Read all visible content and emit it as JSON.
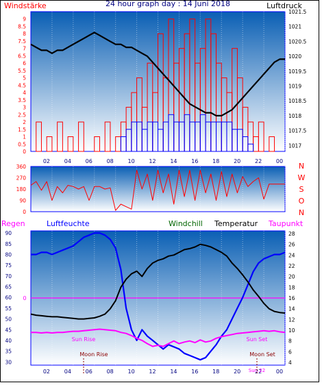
{
  "colors": {
    "wind": "#ff0000",
    "gust": "#0000ff",
    "pressure": "#000000",
    "humidity": "#0000ff",
    "windchill": "#006400",
    "temperature": "#000000",
    "dewpoint": "#ff00ff",
    "rain": "#ff00ff",
    "grad_top": "#0a5fb4",
    "grad_bottom": "#ffffff",
    "axis_red": "#ff0000",
    "axis_dark": "#000080"
  },
  "header": {
    "left": "Windstärke",
    "center": "24 hour graph day : 14 Juni 2018",
    "right": "Luftdruck"
  },
  "legend": {
    "rain": "Regen",
    "humidity": "Luftfeuchte",
    "windchill": "Windchill",
    "temperature": "Temperatur",
    "dewpoint": "Taupunkt"
  },
  "compass": [
    "N",
    "W",
    "S",
    "O",
    "N"
  ],
  "time_ticks": [
    "02",
    "04",
    "06",
    "08",
    "10",
    "12",
    "14",
    "16",
    "18",
    "20",
    "22",
    "00"
  ],
  "annotations": {
    "sun_rise": "Sun Rise",
    "moon_rise": "Moon Rise",
    "sun_set": "Sun Set",
    "moon_set": "Moon Set",
    "sun_overlap": "Sun 22"
  },
  "chart_data": [
    {
      "type": "line",
      "title": "24 hour graph day : 14 Juni 2018",
      "ylabel": "Windstärke",
      "y2label": "Luftdruck",
      "ylim": [
        0,
        9.5
      ],
      "y2lim": [
        1016.8,
        1021.5
      ],
      "yticks": [
        "0",
        "0.5",
        "1",
        "1.5",
        "2",
        "2.5",
        "3",
        "3.5",
        "4",
        "4.5",
        "5",
        "5.5",
        "6",
        "6.5",
        "7",
        "7.5",
        "8",
        "8.5",
        "9"
      ],
      "y2ticks": [
        "1017",
        "1017.5",
        "1018",
        "1018.5",
        "1019",
        "1019.5",
        "1020",
        "1020.5",
        "1021",
        "1021.5"
      ],
      "x_hours": [
        0,
        0.5,
        1,
        1.5,
        2,
        2.5,
        3,
        3.5,
        4,
        4.5,
        5,
        5.5,
        6,
        6.5,
        7,
        7.5,
        8,
        8.5,
        9,
        9.5,
        10,
        10.5,
        11,
        11.5,
        12,
        12.5,
        13,
        13.5,
        14,
        14.5,
        15,
        15.5,
        16,
        16.5,
        17,
        17.5,
        18,
        18.5,
        19,
        19.5,
        20,
        20.5,
        21,
        21.5,
        22,
        22.5,
        23,
        23.5,
        24
      ],
      "series": [
        {
          "values": [
            0,
            2,
            0,
            1,
            0,
            2,
            0,
            1,
            0,
            2,
            0,
            0,
            1,
            0,
            2,
            0,
            1,
            2,
            3,
            4,
            5,
            3,
            6,
            4,
            8,
            5,
            9,
            6,
            7,
            8,
            9,
            6,
            7,
            9,
            8,
            6,
            5,
            4,
            7,
            5,
            3,
            2,
            1,
            2,
            0,
            1,
            0,
            0,
            2
          ]
        },
        {
          "values": [
            0,
            0,
            0,
            0,
            0,
            0,
            0,
            0,
            0,
            0,
            0,
            0,
            0,
            0,
            0,
            0,
            0,
            1,
            1.5,
            2,
            2,
            1.5,
            2,
            2,
            1.5,
            2,
            2.5,
            2,
            2,
            2.5,
            2,
            2,
            2.5,
            2,
            2,
            2,
            2,
            2,
            1.5,
            1.5,
            1,
            0.5,
            0,
            0,
            0,
            0,
            0,
            0,
            0
          ]
        },
        {
          "values": [
            1020.4,
            1020.3,
            1020.2,
            1020.2,
            1020.1,
            1020.2,
            1020.2,
            1020.3,
            1020.4,
            1020.5,
            1020.6,
            1020.7,
            1020.8,
            1020.7,
            1020.6,
            1020.5,
            1020.4,
            1020.4,
            1020.3,
            1020.3,
            1020.2,
            1020.1,
            1020.0,
            1019.8,
            1019.6,
            1019.4,
            1019.2,
            1019.0,
            1018.8,
            1018.6,
            1018.4,
            1018.3,
            1018.2,
            1018.1,
            1018.1,
            1018.0,
            1018.0,
            1018.1,
            1018.2,
            1018.4,
            1018.6,
            1018.8,
            1019.0,
            1019.2,
            1019.4,
            1019.6,
            1019.8,
            1019.9,
            1019.9
          ]
        }
      ]
    },
    {
      "type": "line",
      "ylim": [
        0,
        360
      ],
      "yticks": [
        "0",
        "90",
        "180",
        "270",
        "360"
      ],
      "x_hours": [
        0,
        0.5,
        1,
        1.5,
        2,
        2.5,
        3,
        3.5,
        4,
        4.5,
        5,
        5.5,
        6,
        6.5,
        7,
        7.5,
        8,
        8.5,
        9,
        9.5,
        10,
        10.5,
        11,
        11.5,
        12,
        12.5,
        13,
        13.5,
        14,
        14.5,
        15,
        15.5,
        16,
        16.5,
        17,
        17.5,
        18,
        18.5,
        19,
        19.5,
        20,
        20.5,
        21,
        21.5,
        22,
        22.5,
        23,
        23.5,
        24
      ],
      "series": [
        {
          "values": [
            210,
            240,
            170,
            240,
            90,
            200,
            150,
            210,
            200,
            180,
            200,
            90,
            200,
            200,
            180,
            190,
            10,
            60,
            40,
            20,
            330,
            180,
            300,
            90,
            330,
            150,
            300,
            60,
            330,
            120,
            330,
            90,
            330,
            150,
            300,
            90,
            320,
            120,
            300,
            150,
            280,
            200,
            240,
            270,
            100,
            220,
            220,
            220,
            220
          ]
        }
      ]
    },
    {
      "type": "line",
      "ylabel": "Luftfeuchte",
      "y2label": "Temperatur",
      "ylim": [
        28.5,
        91
      ],
      "y2lim": [
        3.5,
        28.5
      ],
      "yticks": [
        "30",
        "35",
        "40",
        "45",
        "50",
        "55",
        "60",
        "65",
        "70",
        "75",
        "80",
        "85",
        "90"
      ],
      "y2ticks": [
        "4",
        "6",
        "8",
        "10",
        "12",
        "14",
        "16",
        "18",
        "20",
        "22",
        "24",
        "26",
        "28"
      ],
      "x_hours": [
        0,
        0.5,
        1,
        1.5,
        2,
        2.5,
        3,
        3.5,
        4,
        4.5,
        5,
        5.5,
        6,
        6.5,
        7,
        7.5,
        8,
        8.5,
        9,
        9.5,
        10,
        10.5,
        11,
        11.5,
        12,
        12.5,
        13,
        13.5,
        14,
        14.5,
        15,
        15.5,
        16,
        16.5,
        17,
        17.5,
        18,
        18.5,
        19,
        19.5,
        20,
        20.5,
        21,
        21.5,
        22,
        22.5,
        23,
        23.5,
        24
      ],
      "series": [
        {
          "name": "Luftfeuchte",
          "values": [
            80,
            80,
            81,
            81,
            80,
            81,
            82,
            83,
            84,
            86,
            88,
            89,
            90,
            90,
            89,
            87,
            83,
            73,
            55,
            45,
            40,
            45,
            42,
            40,
            38,
            36,
            38,
            37,
            36,
            34,
            33,
            32,
            31,
            32,
            35,
            38,
            42,
            45,
            50,
            55,
            60,
            66,
            72,
            76,
            78,
            79,
            80,
            80,
            81
          ]
        },
        {
          "name": "Temperatur",
          "values": [
            13,
            12.8,
            12.7,
            12.6,
            12.5,
            12.5,
            12.4,
            12.3,
            12.2,
            12.1,
            12.1,
            12.2,
            12.3,
            12.6,
            13.0,
            14.0,
            15.5,
            18.0,
            19.5,
            20.5,
            21,
            20,
            21.5,
            22.5,
            23,
            23.3,
            23.8,
            24,
            24.5,
            25,
            25.2,
            25.5,
            26,
            25.8,
            25.5,
            25.0,
            24.5,
            23.8,
            22.5,
            21.5,
            20.3,
            19,
            17.5,
            16.3,
            15,
            14,
            13.5,
            13.3,
            13.2
          ]
        },
        {
          "name": "Taupunkt",
          "values": [
            9.6,
            9.6,
            9.5,
            9.6,
            9.5,
            9.6,
            9.6,
            9.7,
            9.8,
            9.8,
            9.9,
            10,
            10.1,
            10.2,
            10.1,
            10.0,
            9.9,
            9.6,
            9.4,
            9.0,
            8.5,
            8.1,
            7.5,
            7.0,
            7.2,
            7.0,
            7.5,
            8.0,
            7.5,
            7.8,
            8.0,
            7.7,
            8.2,
            7.8,
            8.0,
            8.5,
            8.8,
            9.0,
            9.2,
            9.4,
            9.5,
            9.6,
            9.7,
            9.8,
            9.9,
            9.8,
            9.9,
            9.7,
            9.6
          ]
        }
      ]
    }
  ]
}
